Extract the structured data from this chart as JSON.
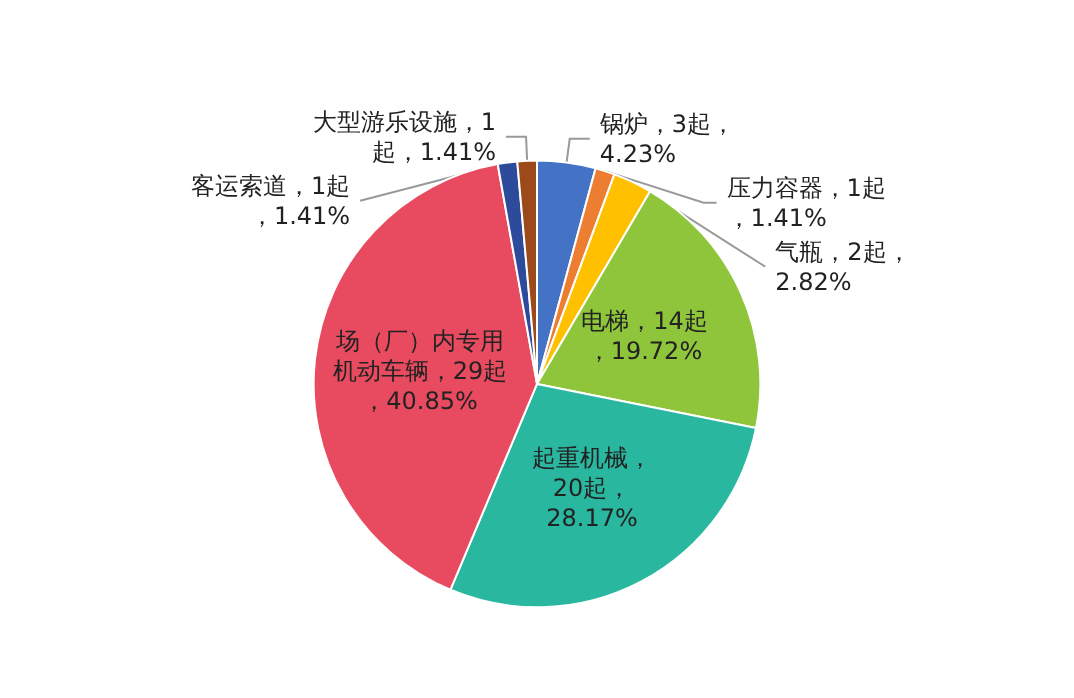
{
  "chart_data": {
    "type": "pie",
    "categories": [
      "锅炉",
      "压力容器",
      "气瓶",
      "电梯",
      "起重机械",
      "场（厂）内专用机动车辆",
      "客运索道",
      "大型游乐设施"
    ],
    "values": [
      3,
      1,
      2,
      14,
      20,
      29,
      1,
      1
    ],
    "value_labels": [
      "，3起，4.23%",
      "，1起，1.41%",
      "，2起，2.82%",
      "，14起，19.72%",
      "，20起，28.17%",
      "，29起，40.85%",
      "，1起，1.41%",
      "，1起，1.41%"
    ],
    "colors": [
      "#4472c4",
      "#ed7d31",
      "#ffc000",
      "#8fc53a",
      "#2ab7a0",
      "#e84b5f",
      "#2e4a9a",
      "#9c4a1a"
    ]
  }
}
